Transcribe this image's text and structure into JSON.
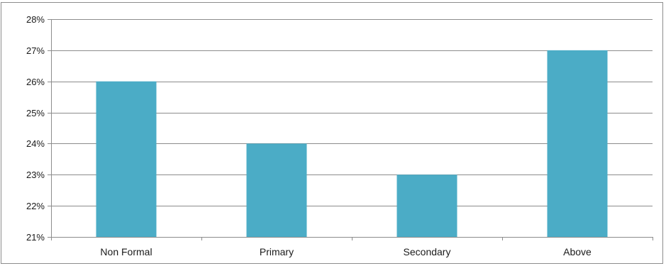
{
  "chart_data": {
    "type": "bar",
    "categories": [
      "Non Formal",
      "Primary",
      "Secondary",
      "Above"
    ],
    "values": [
      26,
      24,
      23,
      27
    ],
    "title": "",
    "xlabel": "",
    "ylabel": "",
    "ylim": [
      21,
      28
    ],
    "yticks": [
      21,
      22,
      23,
      24,
      25,
      26,
      27,
      28
    ],
    "ytick_labels": [
      "21%",
      "22%",
      "23%",
      "24%",
      "25%",
      "26%",
      "27%",
      "28%"
    ],
    "grid": true,
    "legend": "none",
    "bar_color": "#4bacc6",
    "grid_color": "#8c8c8c"
  }
}
